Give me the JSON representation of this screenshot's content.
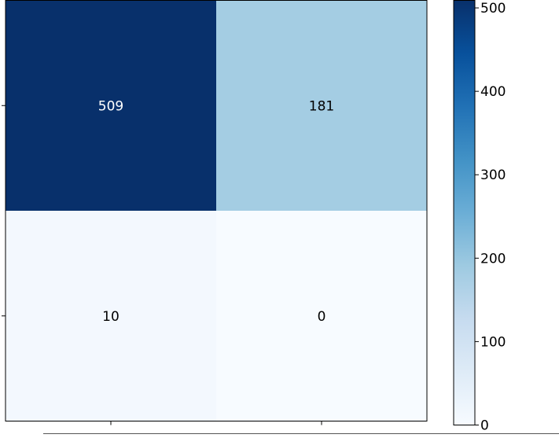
{
  "chart_data": {
    "type": "heatmap",
    "title": "",
    "xlabel": "",
    "ylabel": "",
    "matrix": [
      [
        509,
        181
      ],
      [
        10,
        0
      ]
    ],
    "cell_labels": [
      [
        "509",
        "181"
      ],
      [
        "10",
        "0"
      ]
    ],
    "colormap": "Blues",
    "colorbar": {
      "min": 0,
      "max": 509,
      "ticks": [
        0,
        100,
        200,
        300,
        400,
        500
      ],
      "tick_labels": [
        "0",
        "100",
        "200",
        "300",
        "400",
        "500"
      ]
    }
  },
  "colors": {
    "dark": "#08306b",
    "light": "#f7fbff",
    "text_on_dark": "#ffffff",
    "text_on_light": "#000000"
  }
}
